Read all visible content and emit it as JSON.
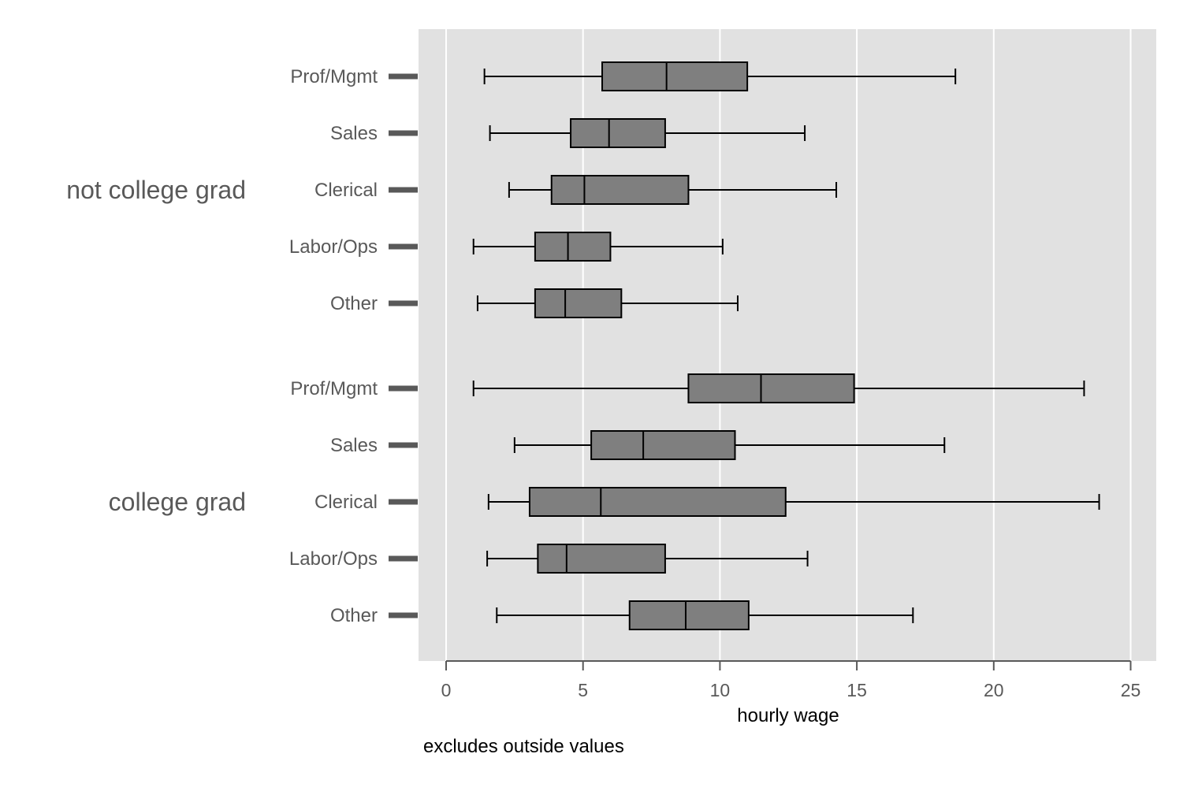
{
  "chart_data": {
    "type": "box",
    "orientation": "horizontal",
    "xlabel": "hourly wage",
    "note": "excludes outside values",
    "xlim": [
      0,
      26
    ],
    "xticks": [
      0,
      5,
      10,
      15,
      20,
      25
    ],
    "grid": true,
    "colors": {
      "plot_bg": "#e1e1e1",
      "grid": "#ffffff",
      "box_fill": "#7f7f7f",
      "stroke": "#000000",
      "label": "#595959",
      "tick_mark": "#595959"
    },
    "groups": [
      {
        "name": "not college grad",
        "categories": [
          {
            "name": "Prof/Mgmt",
            "whisker_low": 1.4,
            "q1": 5.7,
            "median": 8.05,
            "q3": 11.0,
            "whisker_high": 18.6
          },
          {
            "name": "Sales",
            "whisker_low": 1.6,
            "q1": 4.55,
            "median": 5.95,
            "q3": 8.0,
            "whisker_high": 13.1
          },
          {
            "name": "Clerical",
            "whisker_low": 2.3,
            "q1": 3.85,
            "median": 5.05,
            "q3": 8.85,
            "whisker_high": 14.25
          },
          {
            "name": "Labor/Ops",
            "whisker_low": 1.0,
            "q1": 3.25,
            "median": 4.45,
            "q3": 6.0,
            "whisker_high": 10.1
          },
          {
            "name": "Other",
            "whisker_low": 1.15,
            "q1": 3.25,
            "median": 4.35,
            "q3": 6.4,
            "whisker_high": 10.65
          }
        ]
      },
      {
        "name": "college grad",
        "categories": [
          {
            "name": "Prof/Mgmt",
            "whisker_low": 1.0,
            "q1": 8.85,
            "median": 11.5,
            "q3": 14.9,
            "whisker_high": 23.3
          },
          {
            "name": "Sales",
            "whisker_low": 2.5,
            "q1": 5.3,
            "median": 7.2,
            "q3": 10.55,
            "whisker_high": 18.2
          },
          {
            "name": "Clerical",
            "whisker_low": 1.55,
            "q1": 3.05,
            "median": 5.65,
            "q3": 12.4,
            "whisker_high": 23.85
          },
          {
            "name": "Labor/Ops",
            "whisker_low": 1.5,
            "q1": 3.35,
            "median": 4.4,
            "q3": 8.0,
            "whisker_high": 13.2
          },
          {
            "name": "Other",
            "whisker_low": 1.85,
            "q1": 6.7,
            "median": 8.75,
            "q3": 11.05,
            "whisker_high": 17.05
          }
        ]
      }
    ]
  }
}
